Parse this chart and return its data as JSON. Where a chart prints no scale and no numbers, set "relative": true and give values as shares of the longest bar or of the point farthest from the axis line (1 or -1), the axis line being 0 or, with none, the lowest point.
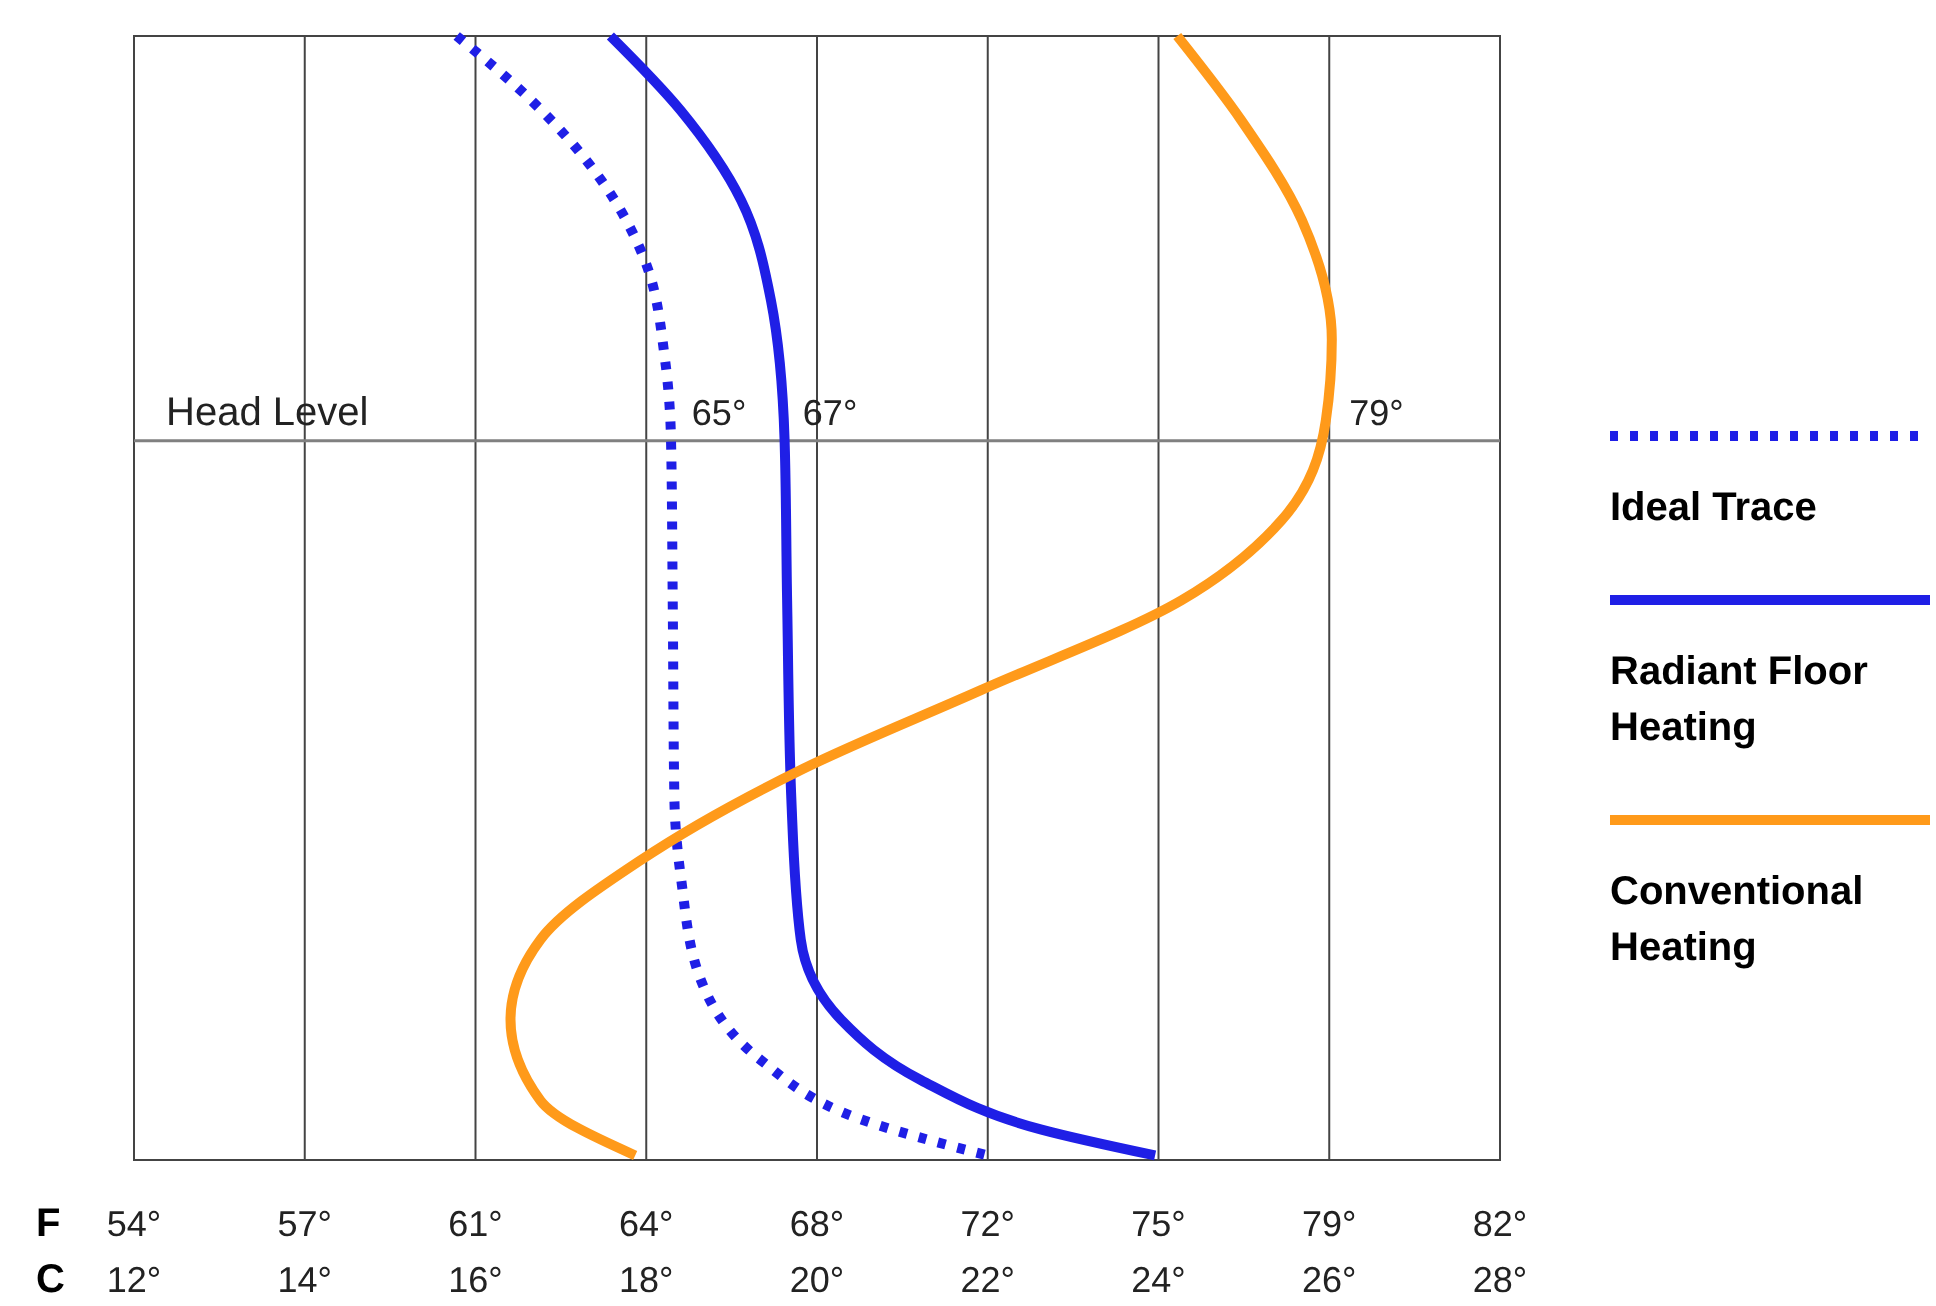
{
  "chart_data": {
    "type": "line",
    "relative": true,
    "xlabel": "C",
    "x2label": "F",
    "xlim": [
      12,
      28
    ],
    "xticks": [
      {
        "value": 12,
        "label": "12°"
      },
      {
        "value": 14,
        "label": "14°"
      },
      {
        "value": 16,
        "label": "16°"
      },
      {
        "value": 18,
        "label": "18°"
      },
      {
        "value": 20,
        "label": "20°"
      },
      {
        "value": 22,
        "label": "22°"
      },
      {
        "value": 24,
        "label": "24°"
      },
      {
        "value": 26,
        "label": "26°"
      },
      {
        "value": 28,
        "label": "28°"
      }
    ],
    "x2lim": [
      53.6,
      82.4
    ],
    "x2ticks": [
      {
        "value": 53.6,
        "label": "54°"
      },
      {
        "value": 57.2,
        "label": "57°"
      },
      {
        "value": 60.8,
        "label": "61°"
      },
      {
        "value": 64.4,
        "label": "64°"
      },
      {
        "value": 68,
        "label": "68°"
      },
      {
        "value": 71.6,
        "label": "72°"
      },
      {
        "value": 75.2,
        "label": "75°"
      },
      {
        "value": 78.8,
        "label": "79°"
      },
      {
        "value": 82.4,
        "label": "82°"
      }
    ],
    "grid": "x",
    "legend": "right",
    "marker": "none",
    "ref_lines": [
      {
        "axis": "y",
        "value": 0.64,
        "label": "Head Level",
        "color": "#808080"
      }
    ],
    "annotations": [
      {
        "text": "65°",
        "x": 18.3,
        "y": 0.64
      },
      {
        "text": "67°",
        "x": 19.6,
        "y": 0.64
      },
      {
        "text": "79°",
        "x": 26.0,
        "y": 0.64
      }
    ],
    "series": [
      {
        "name": "Ideal Trace",
        "color": "#1f1fe6",
        "line_style": "dotted",
        "x": [
          15.78,
          16.65,
          17.47,
          17.98,
          18.22,
          18.29,
          18.31,
          18.33,
          18.41,
          18.64,
          19.34,
          20.52,
          22.0
        ],
        "values": [
          1,
          0.943,
          0.872,
          0.801,
          0.712,
          0.641,
          0.498,
          0.32,
          0.249,
          0.16,
          0.089,
          0.036,
          0.004
        ]
      },
      {
        "name": "Radiant Floor Heating",
        "color": "#1f1fe6",
        "line_style": "solid",
        "x": [
          17.58,
          18.4,
          19.11,
          19.46,
          19.62,
          19.65,
          19.7,
          19.81,
          20.28,
          21.22,
          22.63,
          23.96
        ],
        "values": [
          1,
          0.934,
          0.854,
          0.765,
          0.641,
          0.498,
          0.32,
          0.196,
          0.125,
          0.071,
          0.027,
          0.004
        ]
      },
      {
        "name": "Conventional Heating",
        "color": "#ff9a1a",
        "line_style": "solid",
        "x": [
          24.22,
          24.97,
          25.68,
          26.03,
          25.96,
          25.44,
          24.27,
          21.92,
          19.81,
          17.94,
          16.76,
          16.41,
          16.76,
          17.87
        ],
        "values": [
          1,
          0.925,
          0.836,
          0.73,
          0.658,
          0.569,
          0.498,
          0.418,
          0.347,
          0.267,
          0.196,
          0.125,
          0.053,
          0.004
        ]
      }
    ]
  }
}
